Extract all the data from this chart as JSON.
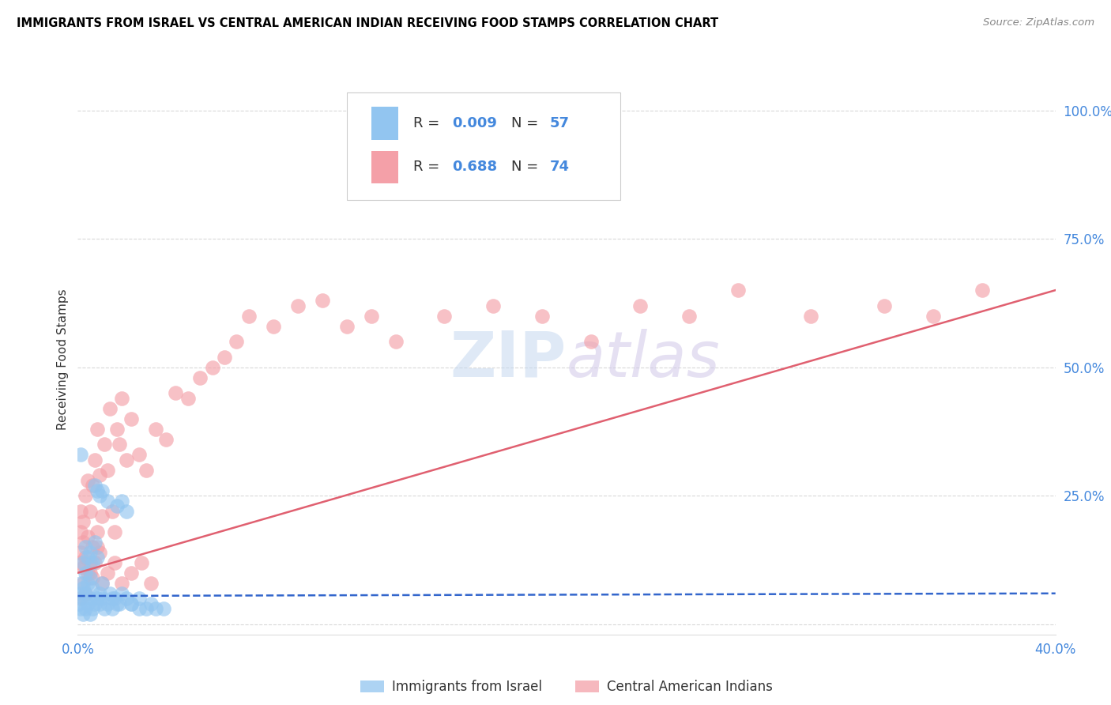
{
  "title": "IMMIGRANTS FROM ISRAEL VS CENTRAL AMERICAN INDIAN RECEIVING FOOD STAMPS CORRELATION CHART",
  "source": "Source: ZipAtlas.com",
  "ylabel": "Receiving Food Stamps",
  "yticks": [
    0.0,
    0.25,
    0.5,
    0.75,
    1.0
  ],
  "ytick_labels": [
    "",
    "25.0%",
    "50.0%",
    "75.0%",
    "100.0%"
  ],
  "xlim": [
    0.0,
    0.4
  ],
  "ylim": [
    -0.02,
    1.05
  ],
  "watermark": "ZIPatlas",
  "legend_r1": "0.009",
  "legend_n1": "57",
  "legend_r2": "0.688",
  "legend_n2": "74",
  "legend_label1": "Immigrants from Israel",
  "legend_label2": "Central American Indians",
  "blue_color": "#92c5f0",
  "pink_color": "#f4a0a8",
  "line_blue_color": "#3366cc",
  "line_pink_color": "#e06070",
  "axis_color": "#4488dd",
  "grid_color": "#d8d8d8",
  "blue_scatter_x": [
    0.0005,
    0.001,
    0.001,
    0.001,
    0.002,
    0.002,
    0.002,
    0.003,
    0.003,
    0.003,
    0.004,
    0.004,
    0.005,
    0.005,
    0.005,
    0.006,
    0.006,
    0.007,
    0.007,
    0.008,
    0.008,
    0.009,
    0.009,
    0.01,
    0.01,
    0.011,
    0.012,
    0.013,
    0.014,
    0.015,
    0.016,
    0.017,
    0.018,
    0.02,
    0.022,
    0.025,
    0.028,
    0.03,
    0.032,
    0.035,
    0.001,
    0.002,
    0.003,
    0.004,
    0.005,
    0.006,
    0.007,
    0.008,
    0.009,
    0.01,
    0.012,
    0.014,
    0.016,
    0.018,
    0.02,
    0.022,
    0.025
  ],
  "blue_scatter_y": [
    0.04,
    0.03,
    0.06,
    0.08,
    0.02,
    0.05,
    0.07,
    0.03,
    0.06,
    0.1,
    0.04,
    0.08,
    0.02,
    0.05,
    0.09,
    0.03,
    0.07,
    0.04,
    0.27,
    0.05,
    0.26,
    0.04,
    0.06,
    0.05,
    0.08,
    0.03,
    0.04,
    0.06,
    0.03,
    0.05,
    0.23,
    0.04,
    0.24,
    0.22,
    0.04,
    0.05,
    0.03,
    0.04,
    0.03,
    0.03,
    0.33,
    0.12,
    0.15,
    0.13,
    0.14,
    0.12,
    0.16,
    0.13,
    0.25,
    0.26,
    0.24,
    0.05,
    0.04,
    0.06,
    0.05,
    0.04,
    0.03
  ],
  "pink_scatter_x": [
    0.0005,
    0.001,
    0.001,
    0.001,
    0.002,
    0.002,
    0.002,
    0.003,
    0.003,
    0.004,
    0.004,
    0.005,
    0.005,
    0.006,
    0.006,
    0.007,
    0.007,
    0.008,
    0.008,
    0.009,
    0.009,
    0.01,
    0.011,
    0.012,
    0.013,
    0.014,
    0.015,
    0.016,
    0.017,
    0.018,
    0.02,
    0.022,
    0.025,
    0.028,
    0.032,
    0.036,
    0.04,
    0.045,
    0.05,
    0.055,
    0.06,
    0.065,
    0.07,
    0.08,
    0.09,
    0.1,
    0.11,
    0.12,
    0.13,
    0.15,
    0.17,
    0.19,
    0.21,
    0.23,
    0.25,
    0.27,
    0.3,
    0.33,
    0.35,
    0.37,
    0.001,
    0.002,
    0.003,
    0.004,
    0.005,
    0.006,
    0.008,
    0.01,
    0.012,
    0.015,
    0.018,
    0.022,
    0.026,
    0.03
  ],
  "pink_scatter_y": [
    0.12,
    0.18,
    0.22,
    0.14,
    0.2,
    0.16,
    0.11,
    0.13,
    0.25,
    0.17,
    0.28,
    0.1,
    0.22,
    0.27,
    0.15,
    0.32,
    0.12,
    0.38,
    0.18,
    0.29,
    0.14,
    0.21,
    0.35,
    0.3,
    0.42,
    0.22,
    0.18,
    0.38,
    0.35,
    0.44,
    0.32,
    0.4,
    0.33,
    0.3,
    0.38,
    0.36,
    0.45,
    0.44,
    0.48,
    0.5,
    0.52,
    0.55,
    0.6,
    0.58,
    0.62,
    0.63,
    0.58,
    0.6,
    0.55,
    0.6,
    0.62,
    0.6,
    0.55,
    0.62,
    0.6,
    0.65,
    0.6,
    0.62,
    0.6,
    0.65,
    0.05,
    0.08,
    0.06,
    0.1,
    0.12,
    0.09,
    0.15,
    0.08,
    0.1,
    0.12,
    0.08,
    0.1,
    0.12,
    0.08
  ],
  "blue_line_x": [
    0.0,
    0.4
  ],
  "blue_line_y": [
    0.055,
    0.06
  ],
  "pink_line_x": [
    0.0,
    0.4
  ],
  "pink_line_y": [
    0.1,
    0.65
  ]
}
